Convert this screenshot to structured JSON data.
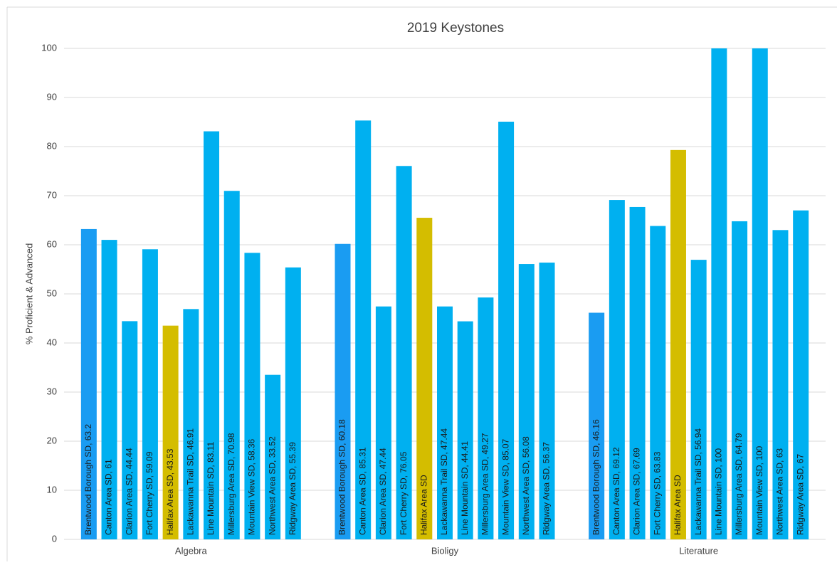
{
  "chart_data": {
    "type": "grouped-bar",
    "title": "2019 Keystones",
    "y_label": "% Proficient & Advanced",
    "colors": [
      "#1a9cf2",
      "#00b0f0",
      "#00b0f0",
      "#00b0f0",
      "#d4bd00",
      "#00b0f0",
      "#00b0f0",
      "#00b0f0",
      "#00b0f0",
      "#00b0f0",
      "#00b0f0"
    ],
    "groups": [
      {
        "name": "Algebra",
        "values": [
          63.2,
          61,
          44.44,
          59.09,
          43.53,
          46.91,
          83.11,
          70.98,
          58.36,
          33.52,
          55.39
        ],
        "value_labels": [
          "Brentwood Borough SD, 63.2",
          "Canton Area SD, 61",
          "Clarion Area SD, 44.44",
          "Fort Cherry SD, 59.09",
          "Halifax Area SD, 43.53",
          "Lackawanna Trail SD, 46.91",
          "Line Mountain SD, 83.11",
          "Millersburg Area SD, 70.98",
          "Mountain View SD, 58.36",
          "Northwest Area SD, 33.52",
          "Ridgway Area SD, 55.39"
        ]
      },
      {
        "name": "Bioligy",
        "values": [
          60.18,
          85.31,
          47.44,
          76.05,
          65.5,
          47.44,
          44.41,
          49.27,
          85.07,
          56.08,
          56.37
        ],
        "value_labels": [
          "Brentwood Borough SD, 60.18",
          "Canton Area SD, 85.31",
          "Clarion Area SD, 47.44",
          "Fort Cherry SD, 76.05",
          "Halifax Area SD",
          "Lackawanna Trail SD, 47.44",
          "Line Mountain SD, 44.41",
          "Millersburg Area SD, 49.27",
          "Mountain View SD, 85.07",
          "Northwest Area SD, 56.08",
          "Ridgway Area SD, 56.37"
        ]
      },
      {
        "name": "Literature",
        "values": [
          46.16,
          69.12,
          67.69,
          63.83,
          79.3,
          56.94,
          100,
          64.79,
          100,
          63,
          67
        ],
        "value_labels": [
          "Brentwood Borough SD, 46.16",
          "Canton Area SD, 69.12",
          "Clarion Area SD, 67.69",
          "Fort Cherry SD, 63.83",
          "Halifax Area SD",
          "Lackawanna Trail SD, 56.94",
          "Line Mountain SD, 100",
          "Millersburg Area SD, 64.79",
          "Mountain View SD, 100",
          "Northwest Area SD, 63",
          "Ridgway Area SD, 67"
        ]
      }
    ],
    "ylim": [
      0,
      100
    ],
    "yticks": [
      0,
      10,
      20,
      30,
      40,
      50,
      60,
      70,
      80,
      90,
      100
    ],
    "grid": true
  }
}
